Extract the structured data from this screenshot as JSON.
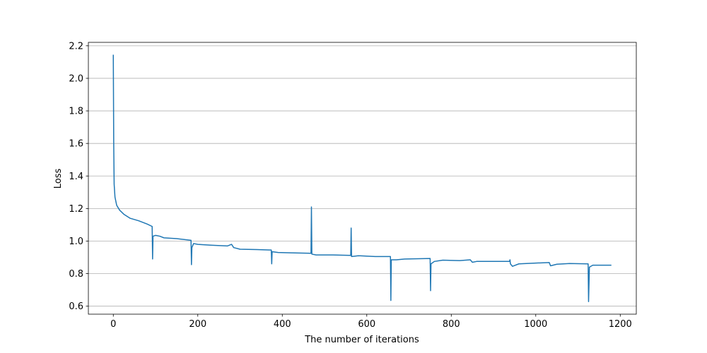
{
  "chart_data": {
    "type": "line",
    "xlabel": "The number of iterations",
    "ylabel": "Loss",
    "color": "#1f77b4",
    "grid": "y",
    "x": [
      0,
      1,
      2,
      4,
      8,
      15,
      25,
      40,
      60,
      80,
      92,
      93,
      94,
      100,
      110,
      120,
      150,
      184,
      185,
      186,
      190,
      200,
      230,
      270,
      280,
      285,
      300,
      340,
      374,
      375,
      376,
      390,
      420,
      468,
      469,
      470,
      480,
      520,
      562,
      563,
      564,
      580,
      620,
      656,
      657,
      658,
      670,
      690,
      750,
      751,
      752,
      760,
      780,
      820,
      845,
      850,
      860,
      900,
      938,
      939,
      940,
      945,
      960,
      1000,
      1032,
      1035,
      1050,
      1080,
      1124,
      1125,
      1127,
      1135,
      1160,
      1179
    ],
    "values": [
      2.145,
      1.6,
      1.35,
      1.27,
      1.22,
      1.19,
      1.165,
      1.14,
      1.125,
      1.105,
      1.09,
      0.89,
      1.03,
      1.035,
      1.03,
      1.02,
      1.015,
      1.005,
      0.855,
      0.96,
      0.985,
      0.98,
      0.975,
      0.97,
      0.98,
      0.96,
      0.95,
      0.948,
      0.945,
      0.86,
      0.935,
      0.93,
      0.928,
      0.925,
      1.21,
      0.92,
      0.915,
      0.915,
      0.912,
      1.08,
      0.905,
      0.91,
      0.905,
      0.905,
      0.635,
      0.885,
      0.885,
      0.89,
      0.893,
      0.695,
      0.86,
      0.875,
      0.883,
      0.88,
      0.885,
      0.87,
      0.875,
      0.875,
      0.875,
      0.885,
      0.86,
      0.845,
      0.86,
      0.865,
      0.868,
      0.848,
      0.858,
      0.862,
      0.86,
      0.628,
      0.84,
      0.852,
      0.852,
      0.852
    ],
    "xlim": [
      -59,
      1238
    ],
    "ylim": [
      0.551,
      2.221
    ],
    "xticks": [
      0,
      200,
      400,
      600,
      800,
      1000,
      1200
    ],
    "yticks": [
      0.6,
      0.8,
      {
        "value": 1,
        "label": "1.0"
      },
      1.2,
      1.4,
      1.6,
      1.8,
      {
        "value": 2,
        "label": "2.0"
      },
      2.2
    ]
  }
}
